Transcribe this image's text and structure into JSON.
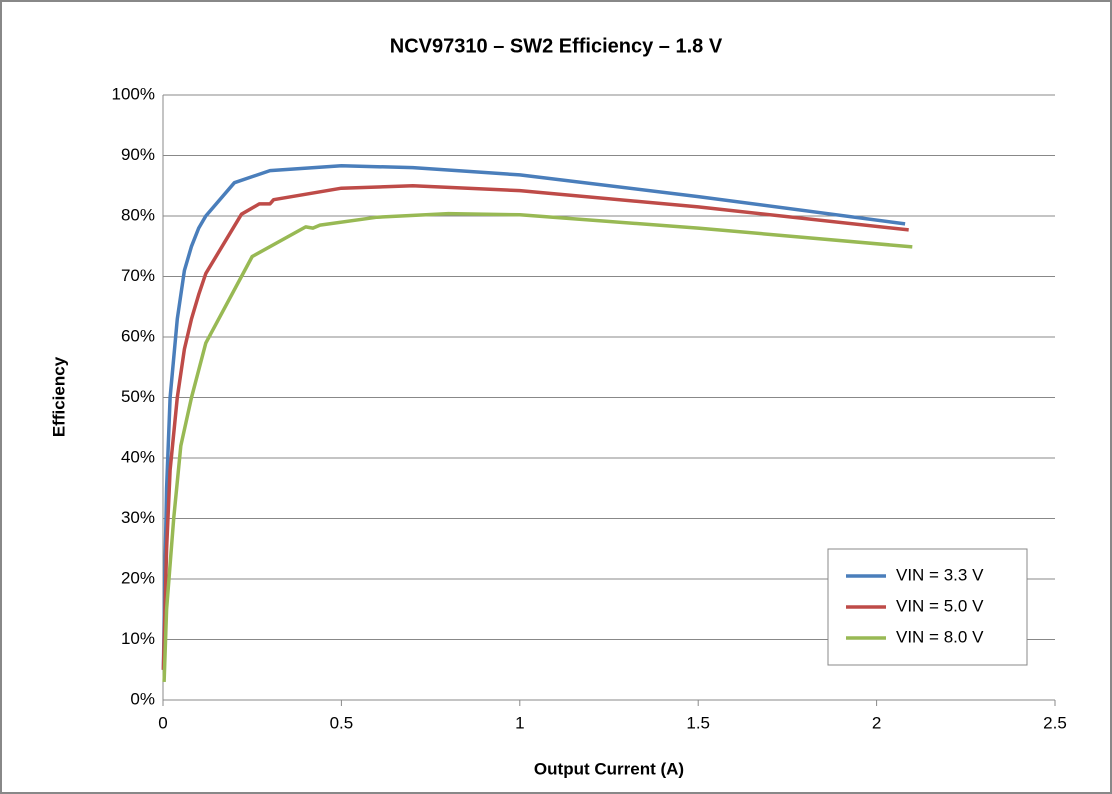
{
  "chart_data": {
    "type": "line",
    "title": "NCV97310 – SW2 Efficiency – 1.8 V",
    "x_label": "Output Current (A)",
    "y_label": "Efficiency",
    "xlim": [
      0,
      2.5
    ],
    "xticks": [
      0,
      0.5,
      1,
      1.5,
      2,
      2.5
    ],
    "ylim": [
      0,
      100
    ],
    "yticks": [
      {
        "value": 0,
        "label": "0%"
      },
      {
        "value": 10,
        "label": "10%"
      },
      {
        "value": 20,
        "label": "20%"
      },
      {
        "value": 30,
        "label": "30%"
      },
      {
        "value": 40,
        "label": "40%"
      },
      {
        "value": 50,
        "label": "50%"
      },
      {
        "value": 60,
        "label": "60%"
      },
      {
        "value": 70,
        "label": "70%"
      },
      {
        "value": 80,
        "label": "80%"
      },
      {
        "value": 90,
        "label": "90%"
      },
      {
        "value": 100,
        "label": "100%"
      }
    ],
    "grid": true,
    "legend": "lower right",
    "series": [
      {
        "name": "VIN = 3.3 V",
        "color": "#4a7ebb",
        "x": [
          0.001,
          0.005,
          0.01,
          0.02,
          0.04,
          0.06,
          0.08,
          0.1,
          0.12,
          0.2,
          0.3,
          0.5,
          0.7,
          1.0,
          1.5,
          2.08
        ],
        "values": [
          5,
          20,
          35,
          50,
          63,
          71,
          75,
          78,
          80,
          85.5,
          87.5,
          88.3,
          88,
          86.8,
          83.2,
          78.7
        ]
      },
      {
        "name": "VIN = 5.0 V",
        "color": "#be4b48",
        "x": [
          0.001,
          0.01,
          0.02,
          0.04,
          0.06,
          0.08,
          0.1,
          0.12,
          0.22,
          0.27,
          0.3,
          0.31,
          0.5,
          0.7,
          1.0,
          1.5,
          2.09
        ],
        "values": [
          5,
          25,
          38,
          50,
          58,
          63,
          67,
          70.5,
          80.3,
          82,
          82,
          82.7,
          84.6,
          85,
          84.2,
          81.5,
          77.7
        ]
      },
      {
        "name": "VIN = 8.0 V",
        "color": "#98b954",
        "x": [
          0.003,
          0.01,
          0.03,
          0.05,
          0.08,
          0.12,
          0.25,
          0.4,
          0.42,
          0.44,
          0.6,
          0.8,
          1.0,
          1.5,
          2.1
        ],
        "values": [
          3,
          15,
          30,
          42,
          50,
          59,
          73.3,
          78.2,
          78,
          78.5,
          79.8,
          80.4,
          80.2,
          78,
          74.9
        ]
      }
    ]
  }
}
